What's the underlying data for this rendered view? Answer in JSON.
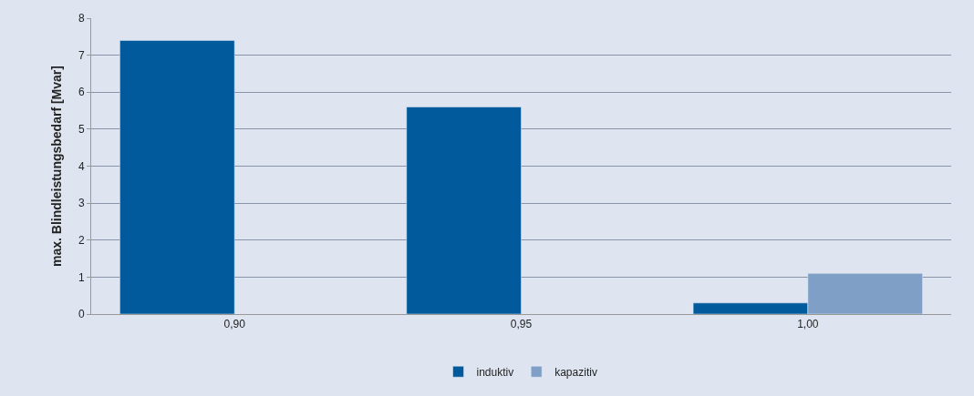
{
  "chart_data": {
    "type": "bar",
    "ylabel": "max. Blindleistungsbedarf [Mvar]",
    "categories": [
      "0,90",
      "0,95",
      "1,00"
    ],
    "series": [
      {
        "name": "induktiv",
        "color": "#005a9c",
        "values": [
          7.4,
          5.6,
          0.3
        ]
      },
      {
        "name": "kapazitiv",
        "color": "#7f9fc6",
        "values": [
          null,
          null,
          1.1
        ]
      }
    ],
    "ylim": [
      0,
      8
    ],
    "yticks": [
      0,
      1,
      2,
      3,
      4,
      5,
      6,
      7,
      8
    ],
    "grid": "y",
    "legend": "bottom"
  }
}
